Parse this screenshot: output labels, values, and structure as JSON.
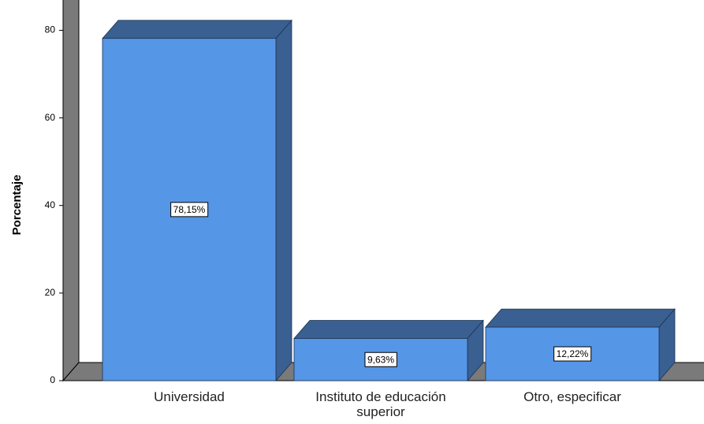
{
  "chart_data": {
    "type": "bar3d",
    "ylabel": "Porcentaje",
    "categories": [
      "Universidad",
      "Instituto de educación superior",
      "Otro, especificar"
    ],
    "values": [
      78.15,
      9.63,
      12.22
    ],
    "value_labels": [
      "78,15%",
      "9,63%",
      "12,22%"
    ],
    "color": "#5596e6",
    "side_color": "#3a5f91",
    "ylim": [
      0,
      88
    ],
    "yticks": [
      0,
      20,
      40,
      60,
      80
    ]
  }
}
